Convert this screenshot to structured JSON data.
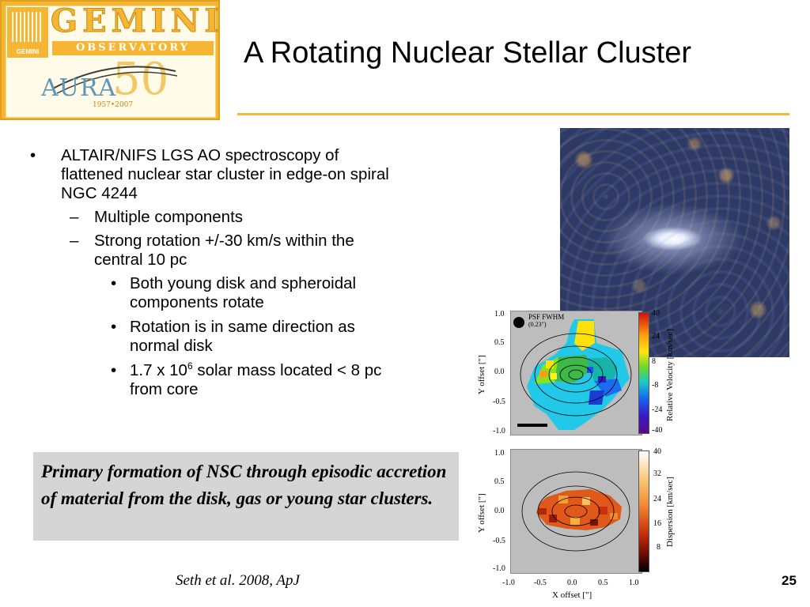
{
  "logo": {
    "name": "GEMINI",
    "subtitle": "OBSERVATORY",
    "emblem_text": "GEMINI",
    "aura": "AURA",
    "fifty": "50",
    "years": "1957•2007"
  },
  "slide": {
    "title": "A Rotating Nuclear Stellar Cluster",
    "page_number": "25"
  },
  "bullets": [
    {
      "level": 1,
      "text": "ALTAIR/NIFS LGS AO spectroscopy of flattened nuclear star cluster in edge-on spiral NGC 4244"
    },
    {
      "level": 2,
      "text": "Multiple components"
    },
    {
      "level": 2,
      "text": "Strong rotation  +/-30 km/s within the central 10 pc"
    },
    {
      "level": 3,
      "text": "Both young disk and spheroidal components rotate"
    },
    {
      "level": 3,
      "text": "Rotation is in same direction as normal disk"
    },
    {
      "level": 3,
      "text_pre": "1.7 x 10",
      "text_sup": "6",
      "text_post": " solar mass located < 8 pc from core"
    }
  ],
  "conclusion": "Primary formation of NSC through episodic accretion of material from the disk, gas or young star clusters.",
  "citation": "Seth et al. 2008, ApJ",
  "velocity_panel": {
    "legend": "PSF FWHM",
    "legend_sub": "(0.23\")",
    "ylabel": "Y offset [\"]",
    "yticks": [
      "1.0",
      "0.5",
      "0.0",
      "-0.5",
      "-1.0"
    ],
    "cbar_label": "Relative Velocity [km/sec]",
    "cbar_ticks": [
      "40",
      "24",
      "8",
      "-8",
      "-24",
      "-40"
    ]
  },
  "dispersion_panel": {
    "ylabel": "Y offset [\"]",
    "xlabel": "X offset [\"]",
    "yticks": [
      "1.0",
      "0.5",
      "0.0",
      "-0.5",
      "-1.0"
    ],
    "xticks": [
      "-1.0",
      "-0.5",
      "0.0",
      "0.5",
      "1.0"
    ],
    "cbar_label": "Dispersion [km/sec]",
    "cbar_ticks": [
      "40",
      "32",
      "24",
      "16",
      "8"
    ]
  }
}
